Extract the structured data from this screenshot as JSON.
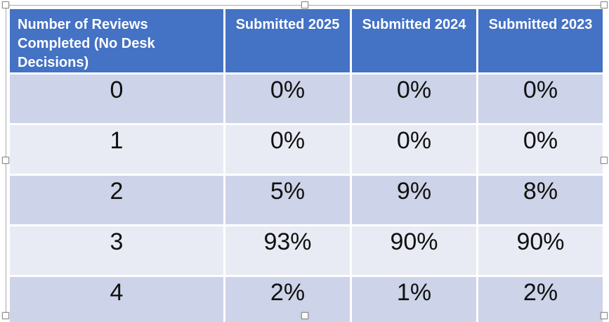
{
  "chart_data": {
    "type": "table",
    "title": "",
    "columns": [
      "Number of Reviews Completed (No Desk Decisions)",
      "Submitted 2025",
      "Submitted 2024",
      "Submitted 2023"
    ],
    "rows": [
      [
        "0",
        "0%",
        "0%",
        "0%"
      ],
      [
        "1",
        "0%",
        "0%",
        "0%"
      ],
      [
        "2",
        "5%",
        "9%",
        "8%"
      ],
      [
        "3",
        "93%",
        "90%",
        "90%"
      ],
      [
        "4",
        "2%",
        "1%",
        "2%"
      ]
    ]
  },
  "table": {
    "headers": {
      "col1": "Number of Reviews Completed (No Desk Decisions)",
      "col2": "Submitted 2025",
      "col3": "Submitted 2024",
      "col4": "Submitted 2023"
    },
    "rows": [
      {
        "cells": [
          "0",
          "0%",
          "0%",
          "0%"
        ]
      },
      {
        "cells": [
          "1",
          "0%",
          "0%",
          "0%"
        ]
      },
      {
        "cells": [
          "2",
          "5%",
          "9%",
          "8%"
        ]
      },
      {
        "cells": [
          "3",
          "93%",
          "90%",
          "90%"
        ]
      },
      {
        "cells": [
          "4",
          "2%",
          "1%",
          "2%"
        ]
      }
    ]
  },
  "colors": {
    "header-bg": "#4472C4",
    "band-dark": "#CDD3E8",
    "band-light": "#E9EBF4",
    "cell-border": "#FFFFFF",
    "header-text": "#FFFFFF",
    "body-text": "#111111",
    "selection-outline": "#ABABAB"
  }
}
